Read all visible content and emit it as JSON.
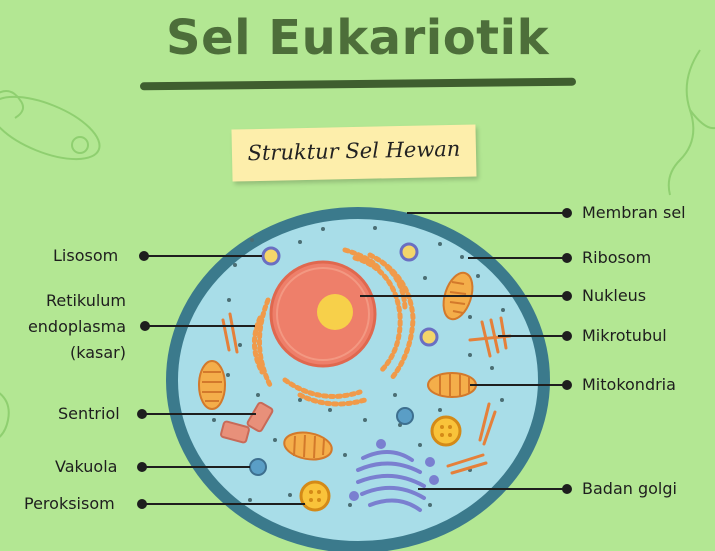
{
  "title": "Sel Eukariotik",
  "subtitle": "Struktur Sel Hewan",
  "labels_left": {
    "lisosom": "Lisosom",
    "retikulum_1": "Retikulum",
    "retikulum_2": "endoplasma",
    "retikulum_3": "(kasar)",
    "sentriol": "Sentriol",
    "vakuola": "Vakuola",
    "peroksisom": "Peroksisom"
  },
  "labels_right": {
    "membran": "Membran sel",
    "ribosom": "Ribosom",
    "nukleus": "Nukleus",
    "mikrotubul": "Mikrotubul",
    "mitokondria": "Mitokondria",
    "golgi": "Badan golgi"
  },
  "colors": {
    "background": "#b3e793",
    "title": "#4d6e3a",
    "membrane": "#3b7a8c",
    "cytoplasm": "#a8dde8",
    "nucleus": "#ee7f6a",
    "nucleolus": "#f7d04a",
    "er": "#f09a4a",
    "golgi": "#7a7fd0"
  }
}
